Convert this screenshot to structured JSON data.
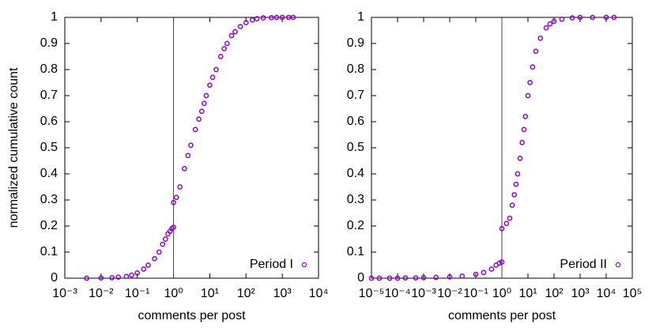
{
  "chart_data": [
    {
      "type": "scatter",
      "x_label": "comments per post",
      "y_label": "normalized cumulative count",
      "log_x": true,
      "reference_x": 1,
      "legend": "bottom-right",
      "xlim": [
        0.001,
        10000
      ],
      "xticks": [
        {
          "value": 0.001,
          "label": "10⁻³"
        },
        {
          "value": 0.01,
          "label": "10⁻²"
        },
        {
          "value": 0.1,
          "label": "10⁻¹"
        },
        {
          "value": 1,
          "label": "10⁰"
        },
        {
          "value": 10,
          "label": "10¹"
        },
        {
          "value": 100,
          "label": "10²"
        },
        {
          "value": 1000,
          "label": "10³"
        },
        {
          "value": 10000,
          "label": "10⁴"
        }
      ],
      "ylim": [
        0,
        1
      ],
      "yticks": [
        0,
        0.1,
        0.2,
        0.3,
        0.4,
        0.5,
        0.6,
        0.7,
        0.8,
        0.9,
        1
      ],
      "series": [
        {
          "name": "Period I",
          "color": "#9400d3",
          "x": [
            0.004,
            0.01,
            0.02,
            0.03,
            0.05,
            0.07,
            0.1,
            0.15,
            0.2,
            0.3,
            0.4,
            0.5,
            0.6,
            0.7,
            0.8,
            0.9,
            1,
            1,
            1.2,
            1.5,
            2,
            2.5,
            3,
            4,
            5,
            6,
            7,
            8,
            10,
            12,
            15,
            20,
            25,
            30,
            40,
            50,
            70,
            100,
            150,
            200,
            300,
            500,
            700,
            1000,
            1500,
            2000
          ],
          "values": [
            0,
            0.001,
            0.002,
            0.004,
            0.007,
            0.012,
            0.02,
            0.035,
            0.05,
            0.075,
            0.1,
            0.13,
            0.15,
            0.17,
            0.18,
            0.19,
            0.195,
            0.29,
            0.31,
            0.35,
            0.42,
            0.47,
            0.51,
            0.57,
            0.61,
            0.64,
            0.67,
            0.7,
            0.74,
            0.77,
            0.8,
            0.85,
            0.88,
            0.9,
            0.93,
            0.945,
            0.965,
            0.98,
            0.99,
            0.995,
            0.998,
            0.999,
            1,
            1,
            1,
            1
          ]
        }
      ]
    },
    {
      "type": "scatter",
      "x_label": "comments per post",
      "log_x": true,
      "reference_x": 1,
      "legend": "bottom-right",
      "xlim": [
        1e-05,
        100000
      ],
      "xticks": [
        {
          "value": 1e-05,
          "label": "10⁻⁵"
        },
        {
          "value": 0.0001,
          "label": "10⁻⁴"
        },
        {
          "value": 0.001,
          "label": "10⁻³"
        },
        {
          "value": 0.01,
          "label": "10⁻²"
        },
        {
          "value": 0.1,
          "label": "10⁻¹"
        },
        {
          "value": 1,
          "label": "10⁰"
        },
        {
          "value": 10,
          "label": "10¹"
        },
        {
          "value": 100,
          "label": "10²"
        },
        {
          "value": 1000,
          "label": "10³"
        },
        {
          "value": 10000,
          "label": "10⁴"
        },
        {
          "value": 100000,
          "label": "10⁵"
        }
      ],
      "ylim": [
        0,
        1
      ],
      "yticks": [
        0,
        0.1,
        0.2,
        0.3,
        0.4,
        0.5,
        0.6,
        0.7,
        0.8,
        0.9,
        1
      ],
      "series": [
        {
          "name": "Period II",
          "color": "#9400d3",
          "x": [
            1e-05,
            2e-05,
            5e-05,
            0.0001,
            0.0002,
            0.0005,
            0.001,
            0.003,
            0.01,
            0.03,
            0.1,
            0.2,
            0.4,
            0.6,
            0.8,
            1,
            1,
            1.5,
            2,
            2.5,
            3,
            3.5,
            4,
            5,
            6,
            7,
            8,
            10,
            12,
            15,
            20,
            30,
            50,
            70,
            100,
            200,
            500,
            1000,
            3000,
            10000,
            20000
          ],
          "values": [
            0,
            0,
            0,
            0,
            0.001,
            0.001,
            0.002,
            0.003,
            0.005,
            0.008,
            0.015,
            0.022,
            0.035,
            0.05,
            0.058,
            0.062,
            0.19,
            0.21,
            0.23,
            0.28,
            0.32,
            0.36,
            0.4,
            0.46,
            0.52,
            0.57,
            0.62,
            0.7,
            0.75,
            0.81,
            0.87,
            0.92,
            0.96,
            0.975,
            0.985,
            0.993,
            0.998,
            1,
            1,
            1,
            1
          ]
        }
      ]
    }
  ]
}
